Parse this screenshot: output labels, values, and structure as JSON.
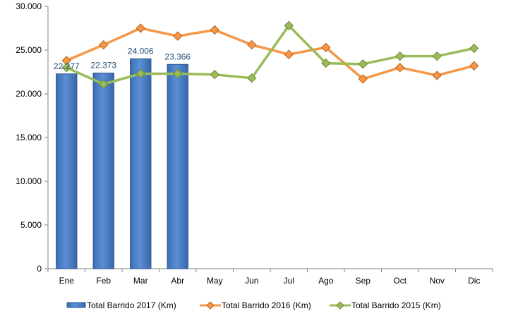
{
  "chart_data": {
    "type": "bar",
    "categories": [
      "Ene",
      "Feb",
      "Mar",
      "Abr",
      "May",
      "Jun",
      "Jul",
      "Ago",
      "Sep",
      "Oct",
      "Nov",
      "Dic"
    ],
    "ylim": [
      0,
      30000
    ],
    "yticks": [
      0,
      5000,
      10000,
      15000,
      20000,
      25000,
      30000
    ],
    "ytick_labels": [
      "0",
      "5.000",
      "10.000",
      "15.000",
      "20.000",
      "25.000",
      "30.000"
    ],
    "grid": false,
    "legend_position": "bottom",
    "series": [
      {
        "name": "Total Barrido 2017 (Km)",
        "kind": "bar",
        "color": "#4f81bd",
        "values": [
          22277,
          22373,
          24006,
          23366,
          null,
          null,
          null,
          null,
          null,
          null,
          null,
          null
        ],
        "data_labels": [
          "22.277",
          "22.373",
          "24.006",
          "23.366",
          null,
          null,
          null,
          null,
          null,
          null,
          null,
          null
        ]
      },
      {
        "name": "Total Barrido 2016 (Km)",
        "kind": "line",
        "color": "#f79646",
        "marker": "diamond",
        "values": [
          23800,
          25600,
          27500,
          26600,
          27300,
          25600,
          24500,
          25300,
          21700,
          23000,
          22100,
          23200
        ]
      },
      {
        "name": "Total Barrido 2015 (Km)",
        "kind": "line",
        "color": "#9bbb59",
        "marker": "diamond",
        "values": [
          23000,
          21100,
          22300,
          22300,
          22200,
          21800,
          27800,
          23500,
          23400,
          24300,
          24300,
          25200
        ]
      }
    ]
  }
}
